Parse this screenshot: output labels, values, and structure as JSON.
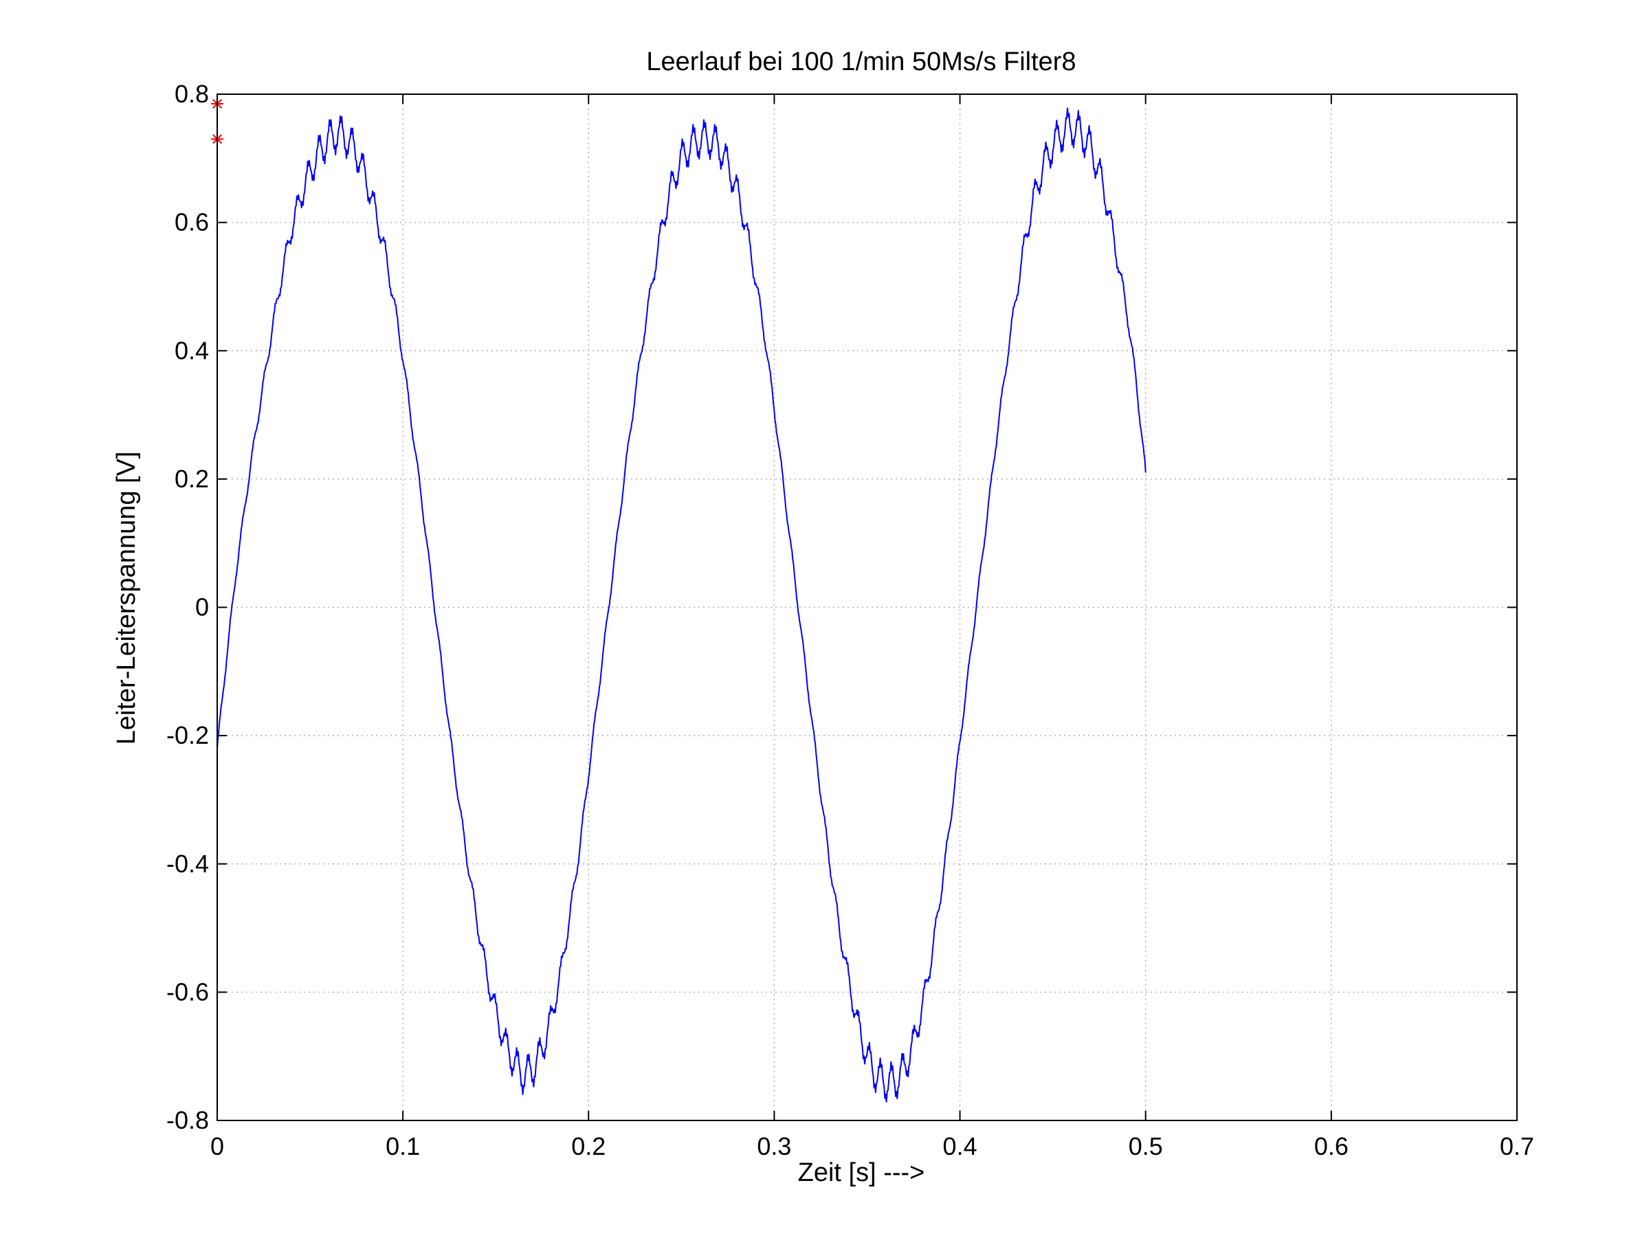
{
  "chart_data": {
    "type": "line",
    "title": "Leerlauf bei 100 1/min 50Ms/s Filter8",
    "xlabel": "Zeit [s] --->",
    "ylabel": "Leiter-Leiterspannung [V]",
    "xlim": [
      0,
      0.7
    ],
    "ylim": [
      -0.8,
      0.8
    ],
    "xticks": [
      0,
      0.1,
      0.2,
      0.3,
      0.4,
      0.5,
      0.6,
      0.7
    ],
    "xtick_labels": [
      "0",
      "0.1",
      "0.2",
      "0.3",
      "0.4",
      "0.5",
      "0.6",
      "0.7"
    ],
    "yticks": [
      -0.8,
      -0.6,
      -0.4,
      -0.2,
      0,
      0.2,
      0.4,
      0.6,
      0.8
    ],
    "ytick_labels": [
      "-0.8",
      "-0.6",
      "-0.4",
      "-0.2",
      "0",
      "0.2",
      "0.4",
      "0.6",
      "0.8"
    ],
    "grid": true,
    "colors": {
      "line": "#0000ff",
      "marker": "#ff0000",
      "grid": "#b0b0b0"
    },
    "series": [
      {
        "style": "line",
        "color": "#0000ff",
        "points": [
          [
            0.0,
            -0.22
          ],
          [
            0.005,
            -0.08
          ],
          [
            0.01,
            0.05
          ],
          [
            0.015,
            0.16
          ],
          [
            0.02,
            0.26
          ],
          [
            0.025,
            0.35
          ],
          [
            0.03,
            0.44
          ],
          [
            0.035,
            0.52
          ],
          [
            0.04,
            0.59
          ],
          [
            0.045,
            0.64
          ],
          [
            0.05,
            0.68
          ],
          [
            0.055,
            0.71
          ],
          [
            0.06,
            0.73
          ],
          [
            0.065,
            0.74
          ],
          [
            0.07,
            0.73
          ],
          [
            0.075,
            0.71
          ],
          [
            0.08,
            0.67
          ],
          [
            0.085,
            0.62
          ],
          [
            0.09,
            0.56
          ],
          [
            0.095,
            0.48
          ],
          [
            0.1,
            0.39
          ],
          [
            0.105,
            0.28
          ],
          [
            0.11,
            0.17
          ],
          [
            0.115,
            0.05
          ],
          [
            0.12,
            -0.07
          ],
          [
            0.125,
            -0.19
          ],
          [
            0.13,
            -0.3
          ],
          [
            0.135,
            -0.4
          ],
          [
            0.14,
            -0.49
          ],
          [
            0.145,
            -0.57
          ],
          [
            0.15,
            -0.63
          ],
          [
            0.155,
            -0.68
          ],
          [
            0.16,
            -0.71
          ],
          [
            0.165,
            -0.73
          ],
          [
            0.17,
            -0.72
          ],
          [
            0.175,
            -0.69
          ],
          [
            0.18,
            -0.64
          ],
          [
            0.185,
            -0.57
          ],
          [
            0.19,
            -0.48
          ],
          [
            0.195,
            -0.38
          ],
          [
            0.2,
            -0.26
          ],
          [
            0.205,
            -0.14
          ],
          [
            0.21,
            -0.02
          ],
          [
            0.215,
            0.1
          ],
          [
            0.22,
            0.22
          ],
          [
            0.225,
            0.33
          ],
          [
            0.23,
            0.43
          ],
          [
            0.235,
            0.52
          ],
          [
            0.24,
            0.6
          ],
          [
            0.245,
            0.66
          ],
          [
            0.25,
            0.7
          ],
          [
            0.255,
            0.72
          ],
          [
            0.26,
            0.73
          ],
          [
            0.265,
            0.73
          ],
          [
            0.27,
            0.72
          ],
          [
            0.275,
            0.69
          ],
          [
            0.28,
            0.65
          ],
          [
            0.285,
            0.59
          ],
          [
            0.29,
            0.51
          ],
          [
            0.295,
            0.42
          ],
          [
            0.3,
            0.31
          ],
          [
            0.305,
            0.19
          ],
          [
            0.31,
            0.07
          ],
          [
            0.315,
            -0.05
          ],
          [
            0.32,
            -0.17
          ],
          [
            0.325,
            -0.29
          ],
          [
            0.33,
            -0.4
          ],
          [
            0.335,
            -0.5
          ],
          [
            0.34,
            -0.58
          ],
          [
            0.345,
            -0.65
          ],
          [
            0.35,
            -0.7
          ],
          [
            0.355,
            -0.73
          ],
          [
            0.36,
            -0.74
          ],
          [
            0.365,
            -0.74
          ],
          [
            0.37,
            -0.72
          ],
          [
            0.375,
            -0.68
          ],
          [
            0.38,
            -0.62
          ],
          [
            0.385,
            -0.54
          ],
          [
            0.39,
            -0.44
          ],
          [
            0.395,
            -0.33
          ],
          [
            0.4,
            -0.21
          ],
          [
            0.405,
            -0.09
          ],
          [
            0.41,
            0.03
          ],
          [
            0.415,
            0.15
          ],
          [
            0.42,
            0.27
          ],
          [
            0.425,
            0.38
          ],
          [
            0.43,
            0.48
          ],
          [
            0.435,
            0.57
          ],
          [
            0.44,
            0.64
          ],
          [
            0.445,
            0.69
          ],
          [
            0.45,
            0.72
          ],
          [
            0.455,
            0.74
          ],
          [
            0.46,
            0.75
          ],
          [
            0.465,
            0.74
          ],
          [
            0.47,
            0.72
          ],
          [
            0.475,
            0.68
          ],
          [
            0.48,
            0.62
          ],
          [
            0.485,
            0.54
          ],
          [
            0.49,
            0.46
          ],
          [
            0.495,
            0.35
          ],
          [
            0.5,
            0.21
          ]
        ]
      },
      {
        "style": "markers",
        "color": "#ff0000",
        "marker": "asterisk",
        "points": [
          [
            0.0,
            0.785
          ],
          [
            0.0,
            0.73
          ]
        ]
      }
    ]
  }
}
